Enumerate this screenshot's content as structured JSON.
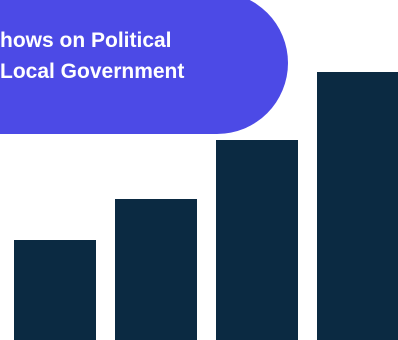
{
  "banner": {
    "line1": "hows on Political",
    "line2": "Local Government",
    "background": "#4c4ae6",
    "text_color": "#ffffff"
  },
  "chart_data": {
    "type": "bar",
    "categories": [
      "",
      "",
      "",
      ""
    ],
    "values": [
      100,
      141,
      200,
      268
    ],
    "ylim": [
      0,
      268
    ],
    "color": "#0b2a42",
    "grid": false
  }
}
